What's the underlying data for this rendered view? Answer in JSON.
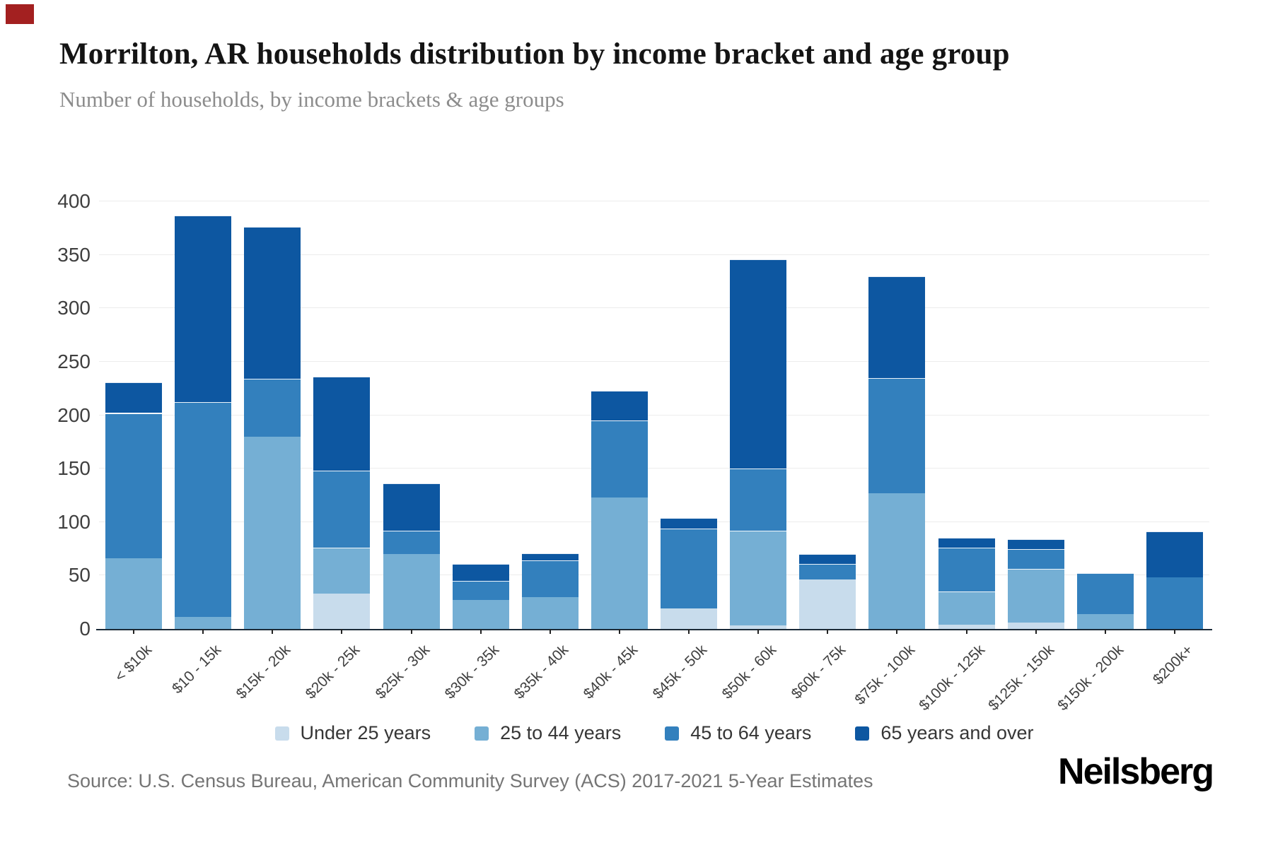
{
  "ui": {
    "corner_marker_color": "#a32020",
    "grid_color": "#ececec",
    "axis_color": "#1b2a38"
  },
  "header": {
    "title": "Morrilton, AR households distribution by income bracket and age group",
    "subtitle": "Number of households, by income brackets & age groups"
  },
  "footer": {
    "source": "Source: U.S. Census Bureau, American Community Survey (ACS) 2017-2021 5-Year Estimates",
    "brand": "Neilsberg"
  },
  "chart_data": {
    "type": "bar",
    "stacked": true,
    "title": "Morrilton, AR households distribution by income bracket and age group",
    "subtitle": "Number of households, by income brackets & age groups",
    "xlabel": "",
    "ylabel": "Number of households",
    "ylim": [
      0,
      400
    ],
    "yticks": [
      0,
      50,
      100,
      150,
      200,
      250,
      300,
      350,
      400
    ],
    "grid": true,
    "legend_position": "bottom",
    "categories": [
      "< $10k",
      "$10 - 15k",
      "$15k - 20k",
      "$20k - 25k",
      "$25k - 30k",
      "$30k - 35k",
      "$35k - 40k",
      "$40k - 45k",
      "$45k - 50k",
      "$50k - 60k",
      "$60k - 75k",
      "$75k - 100k",
      "$100k - 125k",
      "$125k - 150k",
      "$150k - 200k",
      "$200k+"
    ],
    "series": [
      {
        "name": "Under 25 years",
        "color": "#c8dcec",
        "values": [
          0,
          0,
          0,
          33,
          0,
          0,
          0,
          0,
          19,
          3,
          46,
          0,
          4,
          6,
          0,
          0
        ]
      },
      {
        "name": "25 to 44 years",
        "color": "#75afd4",
        "values": [
          66,
          11,
          180,
          43,
          70,
          27,
          30,
          123,
          0,
          89,
          0,
          127,
          31,
          50,
          14,
          0
        ]
      },
      {
        "name": "45 to 64 years",
        "color": "#3380bd",
        "values": [
          136,
          201,
          54,
          72,
          22,
          18,
          34,
          72,
          75,
          58,
          15,
          108,
          41,
          19,
          38,
          48
        ]
      },
      {
        "name": "65 years and over",
        "color": "#0d57a1",
        "values": [
          29,
          175,
          142,
          88,
          44,
          16,
          7,
          28,
          10,
          196,
          9,
          95,
          9,
          9,
          0,
          43
        ]
      }
    ],
    "totals": [
      231,
      387,
      376,
      236,
      136,
      61,
      71,
      223,
      104,
      346,
      70,
      330,
      85,
      84,
      52,
      91
    ]
  }
}
